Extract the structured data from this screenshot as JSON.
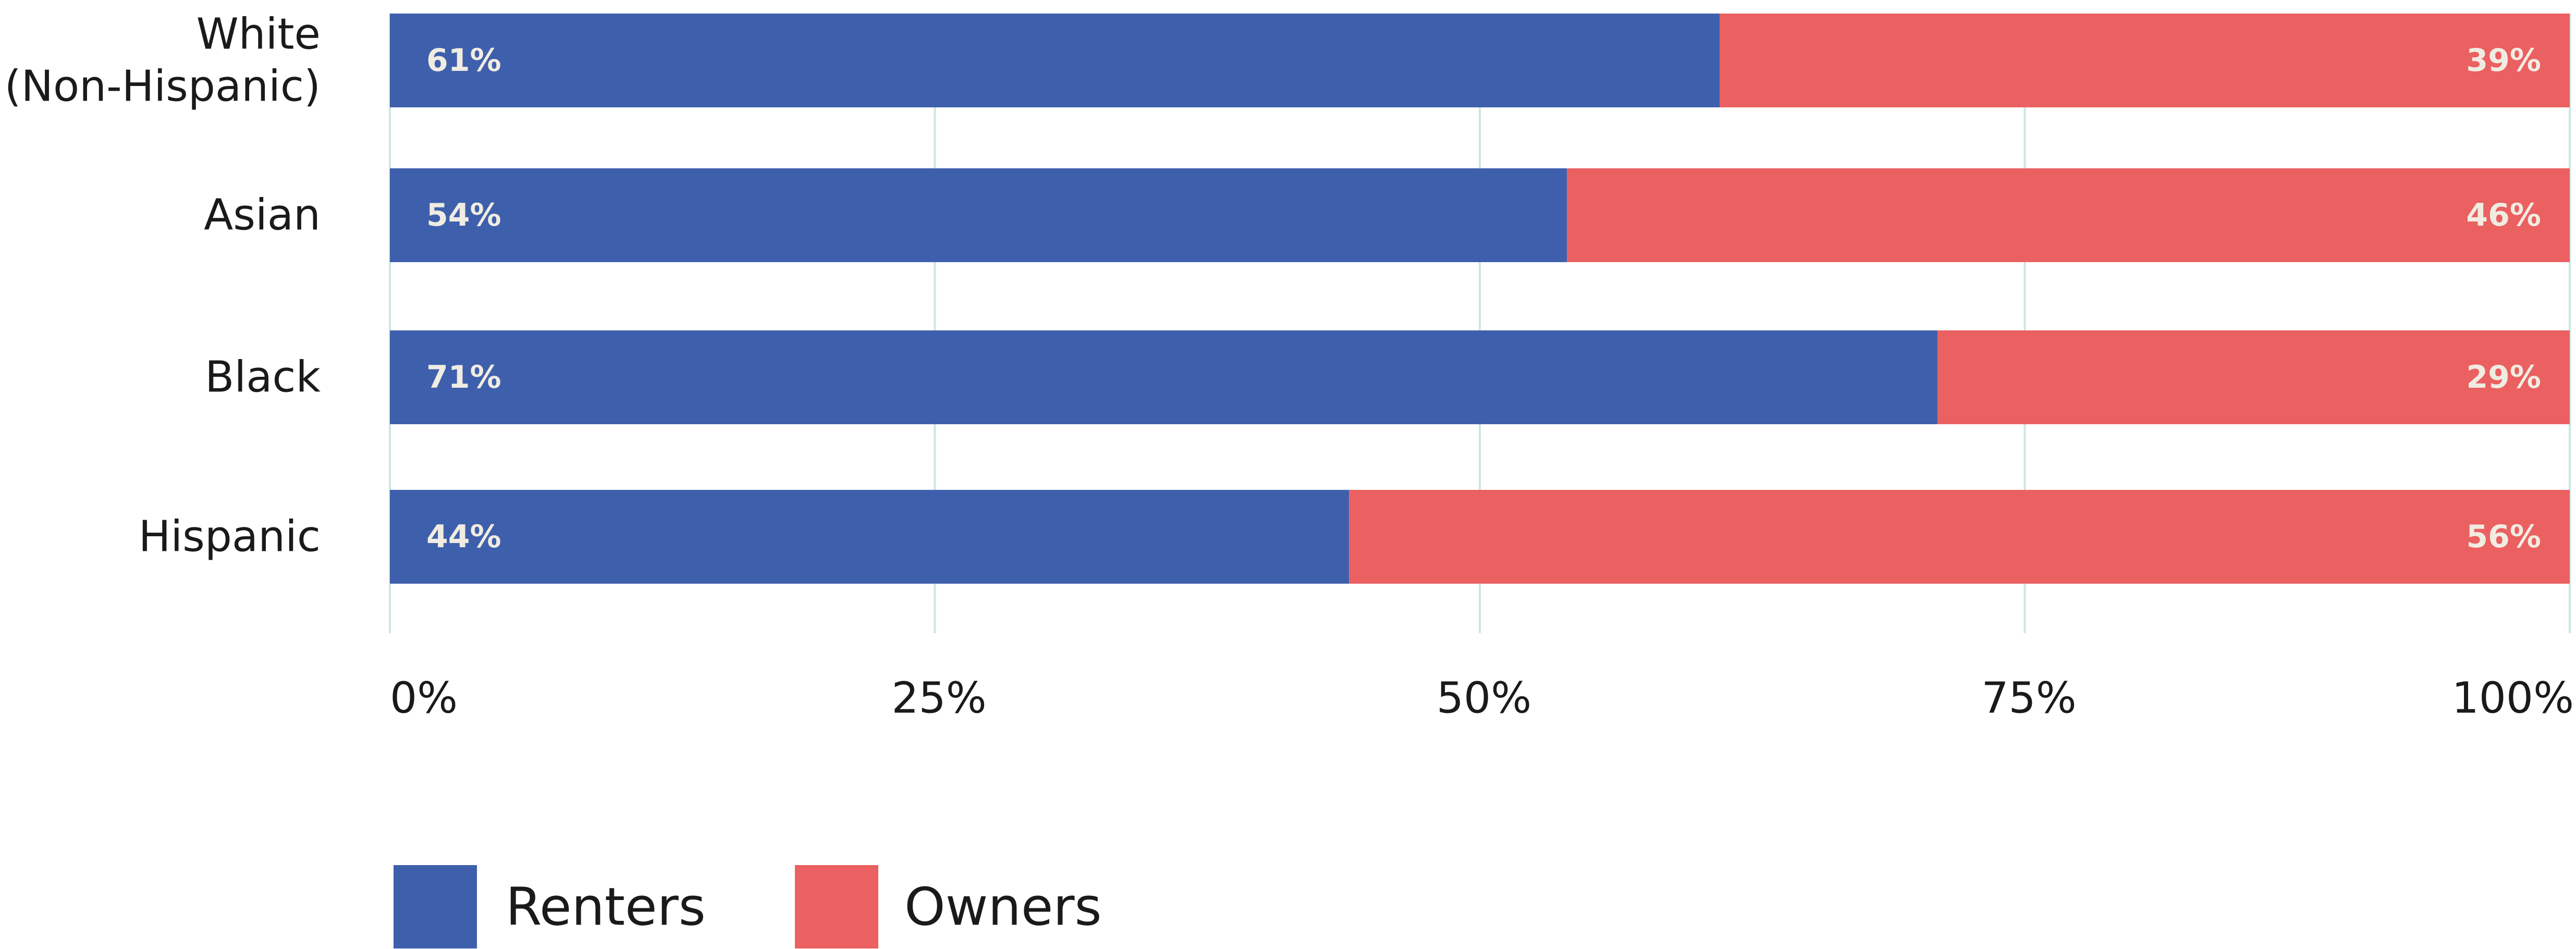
{
  "chart_data": {
    "type": "bar",
    "orientation": "horizontal",
    "stacked": true,
    "categories": [
      [
        "White",
        "(Non-Hispanic)"
      ],
      [
        "Asian"
      ],
      [
        "Black"
      ],
      [
        "Hispanic"
      ]
    ],
    "series": [
      {
        "name": "Renters",
        "values": [
          61,
          54,
          71,
          44
        ],
        "value_labels": [
          "61%",
          "54%",
          "71%",
          "44%"
        ],
        "color": "#3e60ac"
      },
      {
        "name": "Owners",
        "values": [
          39,
          46,
          29,
          56
        ],
        "value_labels": [
          "39%",
          "46%",
          "29%",
          "56%"
        ],
        "color": "#eb6060"
      }
    ],
    "x_ticks": [
      0,
      25,
      50,
      75,
      100
    ],
    "x_tick_labels": [
      "0%",
      "25%",
      "50%",
      "75%",
      "100%"
    ],
    "xlim": [
      0,
      100
    ],
    "grid": true,
    "grid_color": "#c9e8e2",
    "data_label_color": "#f1ece2",
    "legend_position": "bottom-left"
  }
}
